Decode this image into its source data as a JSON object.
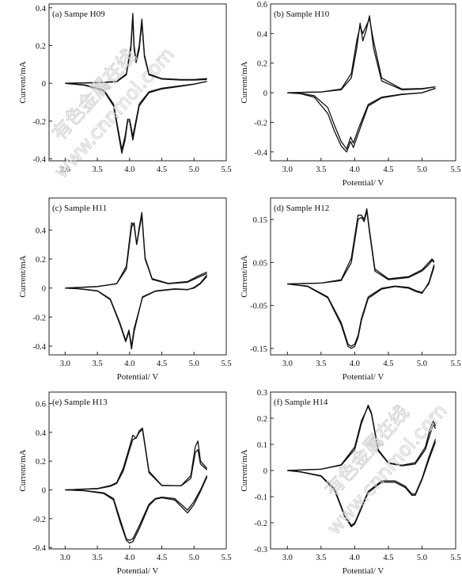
{
  "watermark": {
    "lines": [
      "有色金属在线",
      "www.cnnmol.com"
    ],
    "color": "#cfcfcf"
  },
  "chart_data": [
    {
      "type": "line",
      "title": "(a)  Sampe H09",
      "xlabel": "",
      "ylabel": "Current/mA",
      "xlim": [
        2.75,
        5.5
      ],
      "ylim": [
        -0.41,
        0.42
      ],
      "xticks": [
        3.0,
        3.5,
        4.0,
        4.5,
        5.0,
        5.5
      ],
      "yticks": [
        -0.4,
        -0.2,
        0,
        0.2,
        0.4
      ],
      "xtick_labels": [
        "3.0",
        "3.5",
        "4.0",
        "4.5",
        "5.0",
        "5.5"
      ],
      "ytick_labels": [
        "-0.4",
        "-0.2",
        "0",
        "0.2",
        "0.4"
      ],
      "series": [
        {
          "x": [
            3.0,
            3.5,
            3.8,
            3.95,
            4.02,
            4.05,
            4.07,
            4.1,
            4.15,
            4.19,
            4.23,
            4.3,
            4.5,
            4.8,
            5.0,
            5.2
          ],
          "y": [
            0.0,
            0.004,
            0.01,
            0.05,
            0.2,
            0.37,
            0.2,
            0.12,
            0.2,
            0.34,
            0.15,
            0.05,
            0.025,
            0.02,
            0.02,
            0.025
          ]
        },
        {
          "x": [
            5.2,
            5.0,
            4.8,
            4.5,
            4.3,
            4.15,
            4.05,
            4.0,
            3.97,
            3.93,
            3.88,
            3.75,
            3.6,
            3.3,
            3.0
          ],
          "y": [
            0.01,
            -0.005,
            -0.015,
            -0.03,
            -0.05,
            -0.12,
            -0.3,
            -0.2,
            -0.2,
            -0.3,
            -0.37,
            -0.12,
            -0.04,
            -0.01,
            0.0
          ]
        },
        {
          "x": [
            3.0,
            3.5,
            3.8,
            3.95,
            4.02,
            4.05,
            4.07,
            4.1,
            4.15,
            4.19,
            4.23,
            4.3,
            4.5,
            4.8,
            5.0,
            5.2
          ],
          "y": [
            0.0,
            0.003,
            0.008,
            0.045,
            0.18,
            0.35,
            0.18,
            0.11,
            0.18,
            0.32,
            0.14,
            0.045,
            0.022,
            0.017,
            0.017,
            0.02
          ]
        },
        {
          "x": [
            5.2,
            5.0,
            4.8,
            4.5,
            4.3,
            4.15,
            4.05,
            4.0,
            3.97,
            3.93,
            3.88,
            3.75,
            3.6,
            3.3,
            3.0
          ],
          "y": [
            0.01,
            -0.004,
            -0.012,
            -0.026,
            -0.045,
            -0.11,
            -0.28,
            -0.19,
            -0.19,
            -0.28,
            -0.35,
            -0.11,
            -0.035,
            -0.008,
            0.0
          ]
        }
      ]
    },
    {
      "type": "line",
      "title": "(b)  Sample H10",
      "xlabel": "Potential/ V",
      "ylabel": "Current/mA",
      "xlim": [
        2.75,
        5.5
      ],
      "ylim": [
        -0.46,
        0.6
      ],
      "xticks": [
        3.0,
        3.5,
        4.0,
        4.5,
        5.0,
        5.5
      ],
      "yticks": [
        -0.4,
        -0.2,
        0,
        0.2,
        0.4,
        0.6
      ],
      "xtick_labels": [
        "3.0",
        "3.5",
        "4.0",
        "4.5",
        "5.0",
        "5.5"
      ],
      "ytick_labels": [
        "-0.4",
        "-0.2",
        "0",
        "0.2",
        "0.4",
        "0.6"
      ],
      "series": [
        {
          "x": [
            3.0,
            3.5,
            3.8,
            3.95,
            4.03,
            4.08,
            4.12,
            4.17,
            4.22,
            4.28,
            4.4,
            4.7,
            5.0,
            5.2
          ],
          "y": [
            0.0,
            0.005,
            0.02,
            0.1,
            0.3,
            0.47,
            0.35,
            0.42,
            0.52,
            0.3,
            0.08,
            0.02,
            0.025,
            0.04
          ]
        },
        {
          "x": [
            5.2,
            5.0,
            4.7,
            4.4,
            4.2,
            4.05,
            3.98,
            3.94,
            3.88,
            3.8,
            3.7,
            3.6,
            3.4,
            3.2,
            3.0
          ],
          "y": [
            0.03,
            0.0,
            -0.01,
            -0.03,
            -0.08,
            -0.25,
            -0.34,
            -0.3,
            -0.38,
            -0.33,
            -0.22,
            -0.1,
            -0.02,
            -0.005,
            0.0
          ]
        },
        {
          "x": [
            3.0,
            3.5,
            3.8,
            3.95,
            4.03,
            4.08,
            4.12,
            4.17,
            4.22,
            4.28,
            4.4,
            4.7,
            5.0,
            5.2
          ],
          "y": [
            0.0,
            0.005,
            0.025,
            0.13,
            0.35,
            0.45,
            0.4,
            0.45,
            0.5,
            0.35,
            0.1,
            0.025,
            0.028,
            0.04
          ]
        },
        {
          "x": [
            5.2,
            5.0,
            4.7,
            4.4,
            4.2,
            4.05,
            3.98,
            3.94,
            3.88,
            3.8,
            3.7,
            3.6,
            3.4,
            3.2,
            3.0
          ],
          "y": [
            0.03,
            0.0,
            -0.012,
            -0.035,
            -0.09,
            -0.28,
            -0.37,
            -0.33,
            -0.4,
            -0.36,
            -0.26,
            -0.14,
            -0.03,
            -0.007,
            0.0
          ]
        }
      ]
    },
    {
      "type": "line",
      "title": "(c)  Sample H11",
      "xlabel": "Potential/ V",
      "ylabel": "Current/mA",
      "xlim": [
        2.75,
        5.5
      ],
      "ylim": [
        -0.46,
        0.62
      ],
      "xticks": [
        3.0,
        3.5,
        4.0,
        4.5,
        5.0,
        5.5
      ],
      "yticks": [
        -0.4,
        -0.2,
        0,
        0.2,
        0.4
      ],
      "xtick_labels": [
        "3.0",
        "3.5",
        "4.0",
        "4.5",
        "5.0",
        "5.5"
      ],
      "ytick_labels": [
        "-0.4",
        "-0.2",
        "0",
        "0.2",
        "0.4"
      ],
      "series": [
        {
          "x": [
            3.0,
            3.5,
            3.8,
            3.95,
            4.03,
            4.07,
            4.11,
            4.15,
            4.19,
            4.24,
            4.35,
            4.6,
            4.9,
            5.05,
            5.15,
            5.2
          ],
          "y": [
            0.0,
            0.01,
            0.03,
            0.15,
            0.45,
            0.43,
            0.3,
            0.4,
            0.5,
            0.2,
            0.06,
            0.03,
            0.04,
            0.07,
            0.09,
            0.1
          ]
        },
        {
          "x": [
            5.2,
            5.1,
            5.0,
            4.9,
            4.7,
            4.4,
            4.2,
            4.07,
            4.03,
            3.99,
            3.94,
            3.85,
            3.7,
            3.5,
            3.2,
            3.0
          ],
          "y": [
            0.08,
            0.03,
            0.0,
            -0.01,
            -0.005,
            -0.02,
            -0.06,
            -0.3,
            -0.42,
            -0.3,
            -0.37,
            -0.25,
            -0.08,
            -0.02,
            -0.005,
            0.0
          ]
        },
        {
          "x": [
            3.0,
            3.5,
            3.8,
            3.95,
            4.03,
            4.07,
            4.11,
            4.15,
            4.19,
            4.24,
            4.35,
            4.6,
            4.9,
            5.05,
            5.15,
            5.2
          ],
          "y": [
            0.0,
            0.01,
            0.03,
            0.13,
            0.42,
            0.45,
            0.3,
            0.42,
            0.52,
            0.21,
            0.065,
            0.032,
            0.045,
            0.08,
            0.1,
            0.11
          ]
        },
        {
          "x": [
            5.2,
            5.1,
            5.0,
            4.9,
            4.7,
            4.4,
            4.2,
            4.07,
            4.03,
            3.99,
            3.94,
            3.85,
            3.7,
            3.5,
            3.2,
            3.0
          ],
          "y": [
            0.09,
            0.035,
            0.005,
            -0.012,
            -0.008,
            -0.022,
            -0.065,
            -0.28,
            -0.4,
            -0.29,
            -0.36,
            -0.24,
            -0.075,
            -0.018,
            -0.004,
            0.0
          ]
        }
      ]
    },
    {
      "type": "line",
      "title": "(d)  Sample H12",
      "xlabel": "Potential/ V",
      "ylabel": "Current/mA",
      "xlim": [
        2.75,
        5.5
      ],
      "ylim": [
        -0.165,
        0.2
      ],
      "xticks": [
        3.0,
        3.5,
        4.0,
        4.5,
        5.0,
        5.5
      ],
      "yticks": [
        -0.15,
        -0.05,
        0.05,
        0.15
      ],
      "xtick_labels": [
        "3.0",
        "3.5",
        "4.0",
        "4.5",
        "5.0",
        "5.5"
      ],
      "ytick_labels": [
        "-0.15",
        "-0.05",
        "0.05",
        "0.15"
      ],
      "series": [
        {
          "x": [
            3.0,
            3.5,
            3.8,
            3.95,
            4.05,
            4.1,
            4.14,
            4.18,
            4.22,
            4.3,
            4.5,
            4.8,
            5.0,
            5.1,
            5.15,
            5.18
          ],
          "y": [
            0.0,
            0.002,
            0.008,
            0.05,
            0.15,
            0.155,
            0.145,
            0.17,
            0.12,
            0.03,
            0.01,
            0.015,
            0.03,
            0.045,
            0.055,
            0.05
          ]
        },
        {
          "x": [
            5.18,
            5.1,
            5.0,
            4.9,
            4.8,
            4.6,
            4.4,
            4.2,
            4.1,
            4.05,
            4.0,
            3.95,
            3.9,
            3.8,
            3.6,
            3.3,
            3.0
          ],
          "y": [
            0.04,
            0.0,
            -0.02,
            -0.015,
            -0.008,
            -0.005,
            -0.01,
            -0.03,
            -0.08,
            -0.12,
            -0.14,
            -0.145,
            -0.14,
            -0.09,
            -0.03,
            -0.005,
            0.0
          ]
        },
        {
          "x": [
            3.0,
            3.5,
            3.8,
            3.95,
            4.05,
            4.1,
            4.14,
            4.18,
            4.22,
            4.3,
            4.5,
            4.8,
            5.0,
            5.1,
            5.15,
            5.18
          ],
          "y": [
            0.0,
            0.002,
            0.01,
            0.06,
            0.16,
            0.16,
            0.15,
            0.175,
            0.125,
            0.035,
            0.012,
            0.017,
            0.033,
            0.05,
            0.058,
            0.052
          ]
        },
        {
          "x": [
            5.18,
            5.1,
            5.0,
            4.9,
            4.8,
            4.6,
            4.4,
            4.2,
            4.1,
            4.05,
            4.0,
            3.95,
            3.9,
            3.8,
            3.6,
            3.3,
            3.0
          ],
          "y": [
            0.045,
            0.003,
            -0.022,
            -0.017,
            -0.01,
            -0.006,
            -0.012,
            -0.034,
            -0.085,
            -0.125,
            -0.145,
            -0.15,
            -0.145,
            -0.095,
            -0.032,
            -0.006,
            0.0
          ]
        }
      ]
    },
    {
      "type": "line",
      "title": "(e)  Sample H13",
      "xlabel": "Potential/ V",
      "ylabel": "Current/mA",
      "xlim": [
        2.75,
        5.5
      ],
      "ylim": [
        -0.41,
        0.68
      ],
      "xticks": [
        3.0,
        3.5,
        4.0,
        4.5,
        5.0,
        5.5
      ],
      "yticks": [
        -0.4,
        -0.2,
        0,
        0.2,
        0.4,
        0.6
      ],
      "xtick_labels": [
        "3.0",
        "3.5",
        "4.0",
        "4.5",
        "5.0",
        "5.5"
      ],
      "ytick_labels": [
        "-0.4",
        "-0.2",
        "0",
        "0.2",
        "0.4",
        "0.6"
      ],
      "series": [
        {
          "x": [
            3.0,
            3.5,
            3.7,
            3.8,
            3.9,
            4.0,
            4.05,
            4.1,
            4.15,
            4.2,
            4.3,
            4.5,
            4.8,
            4.95,
            5.02,
            5.06,
            5.1,
            5.2
          ],
          "y": [
            0.0,
            0.01,
            0.03,
            0.05,
            0.15,
            0.3,
            0.38,
            0.36,
            0.4,
            0.42,
            0.12,
            0.03,
            0.03,
            0.1,
            0.3,
            0.34,
            0.2,
            0.15
          ]
        },
        {
          "x": [
            5.2,
            5.1,
            5.0,
            4.9,
            4.7,
            4.5,
            4.4,
            4.3,
            4.15,
            4.05,
            4.0,
            3.95,
            3.85,
            3.75,
            3.6,
            3.3,
            3.0
          ],
          "y": [
            0.1,
            0.0,
            -0.08,
            -0.14,
            -0.06,
            -0.05,
            -0.06,
            -0.1,
            -0.25,
            -0.34,
            -0.35,
            -0.34,
            -0.2,
            -0.06,
            -0.02,
            -0.005,
            0.0
          ]
        },
        {
          "x": [
            3.0,
            3.5,
            3.7,
            3.8,
            3.9,
            4.0,
            4.05,
            4.1,
            4.15,
            4.2,
            4.3,
            4.5,
            4.8,
            4.95,
            5.02,
            5.06,
            5.1,
            5.2
          ],
          "y": [
            0.0,
            0.008,
            0.025,
            0.045,
            0.13,
            0.28,
            0.35,
            0.36,
            0.41,
            0.43,
            0.13,
            0.032,
            0.028,
            0.08,
            0.26,
            0.28,
            0.18,
            0.14
          ]
        },
        {
          "x": [
            5.2,
            5.1,
            5.0,
            4.9,
            4.7,
            4.5,
            4.4,
            4.3,
            4.15,
            4.05,
            4.0,
            3.95,
            3.85,
            3.75,
            3.6,
            3.3,
            3.0
          ],
          "y": [
            0.09,
            -0.01,
            -0.1,
            -0.16,
            -0.07,
            -0.055,
            -0.065,
            -0.11,
            -0.27,
            -0.36,
            -0.37,
            -0.35,
            -0.22,
            -0.07,
            -0.025,
            -0.006,
            0.0
          ]
        }
      ]
    },
    {
      "type": "line",
      "title": "(f)  Sample H14",
      "xlabel": "Potential/ V",
      "ylabel": "Current/mA",
      "xlim": [
        2.75,
        5.5
      ],
      "ylim": [
        -0.3,
        0.3
      ],
      "xticks": [
        3.0,
        3.5,
        4.0,
        4.5,
        5.0,
        5.5
      ],
      "yticks": [
        -0.3,
        -0.2,
        -0.1,
        0,
        0.1,
        0.2,
        0.3
      ],
      "xtick_labels": [
        "3.0",
        "3.5",
        "4.0",
        "4.5",
        "5.0",
        "5.5"
      ],
      "ytick_labels": [
        "-0.3",
        "-0.2",
        "-0.1",
        "0",
        "0.1",
        "0.2",
        "0.3"
      ],
      "series": [
        {
          "x": [
            3.0,
            3.5,
            3.8,
            4.0,
            4.1,
            4.2,
            4.25,
            4.35,
            4.5,
            4.7,
            4.9,
            5.05,
            5.12,
            5.17,
            5.2
          ],
          "y": [
            0.0,
            0.005,
            0.02,
            0.08,
            0.18,
            0.25,
            0.22,
            0.08,
            0.03,
            0.02,
            0.03,
            0.09,
            0.16,
            0.19,
            0.17
          ]
        },
        {
          "x": [
            5.2,
            5.1,
            5.0,
            4.9,
            4.85,
            4.75,
            4.6,
            4.4,
            4.2,
            4.0,
            3.95,
            3.85,
            3.7,
            3.5,
            3.2,
            3.0
          ],
          "y": [
            0.12,
            0.05,
            -0.03,
            -0.09,
            -0.09,
            -0.06,
            -0.04,
            -0.04,
            -0.08,
            -0.2,
            -0.21,
            -0.17,
            -0.07,
            -0.02,
            -0.005,
            0.0
          ]
        },
        {
          "x": [
            3.0,
            3.5,
            3.8,
            4.0,
            4.1,
            4.2,
            4.25,
            4.35,
            4.5,
            4.7,
            4.9,
            5.05,
            5.12,
            5.17,
            5.2
          ],
          "y": [
            0.0,
            0.005,
            0.022,
            0.09,
            0.19,
            0.245,
            0.215,
            0.075,
            0.028,
            0.018,
            0.025,
            0.08,
            0.14,
            0.175,
            0.16
          ]
        },
        {
          "x": [
            5.2,
            5.1,
            5.0,
            4.9,
            4.85,
            4.75,
            4.6,
            4.4,
            4.2,
            4.0,
            3.95,
            3.85,
            3.7,
            3.5,
            3.2,
            3.0
          ],
          "y": [
            0.11,
            0.04,
            -0.035,
            -0.095,
            -0.095,
            -0.065,
            -0.045,
            -0.045,
            -0.085,
            -0.205,
            -0.215,
            -0.175,
            -0.075,
            -0.022,
            -0.006,
            0.0
          ]
        }
      ]
    }
  ]
}
